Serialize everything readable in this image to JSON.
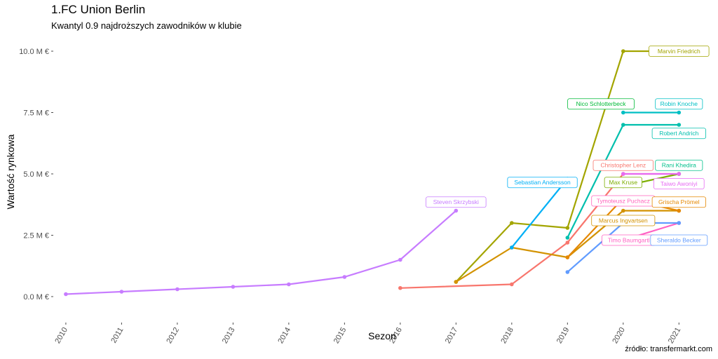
{
  "chart_data": {
    "type": "line",
    "title": "1.FC Union Berlin",
    "subtitle": "Kwantyl 0.9 najdroższych zawodników w klubie",
    "caption": "źródło: transfermarkt.com",
    "xlabel": "Sezon",
    "ylabel": "Wartość rynkowa",
    "x_ticks": [
      "2010",
      "2011",
      "2012",
      "2013",
      "2014",
      "2015",
      "2016",
      "2017",
      "2018",
      "2019",
      "2020",
      "2021"
    ],
    "y_ticks": [
      {
        "value": 0,
        "label": "0.0 M €"
      },
      {
        "value": 2.5,
        "label": "2.5 M €"
      },
      {
        "value": 5,
        "label": "5.0 M €"
      },
      {
        "value": 7.5,
        "label": "7.5 M €"
      },
      {
        "value": 10,
        "label": "10.0 M €"
      }
    ],
    "xlim": [
      2009.8,
      2021.6
    ],
    "ylim": [
      -1,
      10.8
    ],
    "grid": false,
    "series": [
      {
        "name": "Steven Skrzybski",
        "color": "#C77CFF",
        "points": [
          [
            2010,
            0.1
          ],
          [
            2011,
            0.2
          ],
          [
            2012,
            0.3
          ],
          [
            2013,
            0.4
          ],
          [
            2014,
            0.5
          ],
          [
            2015,
            0.8
          ],
          [
            2016,
            1.5
          ],
          [
            2017,
            3.5
          ]
        ]
      },
      {
        "name": "Christopher Lenz",
        "color": "#F8766D",
        "points": [
          [
            2016,
            0.35
          ],
          [
            2018,
            0.5
          ],
          [
            2019,
            2.2
          ],
          [
            2020,
            5.0
          ],
          [
            2021,
            5.0
          ]
        ]
      },
      {
        "name": "Marvin Friedrich",
        "color": "#A3A500",
        "points": [
          [
            2017,
            0.6
          ],
          [
            2018,
            3.0
          ],
          [
            2019,
            2.8
          ],
          [
            2020,
            10.0
          ],
          [
            2021,
            10.0
          ]
        ]
      },
      {
        "name": "Marcus Ingvartsen",
        "color": "#D39200",
        "points": [
          [
            2017,
            0.6
          ],
          [
            2018,
            2.0
          ],
          [
            2019,
            1.6
          ],
          [
            2020,
            3.5
          ],
          [
            2021,
            3.5
          ]
        ]
      },
      {
        "name": "Sebastian Andersson",
        "color": "#00B0F6",
        "points": [
          [
            2018,
            2.0
          ],
          [
            2019,
            4.8
          ]
        ]
      },
      {
        "name": "Robin Knoche",
        "color": "#00BFC4",
        "points": [
          [
            2020,
            7.5
          ],
          [
            2021,
            7.5
          ]
        ]
      },
      {
        "name": "Robert Andrich",
        "color": "#00BFAD",
        "points": [
          [
            2019,
            2.4
          ],
          [
            2020,
            7.0
          ],
          [
            2021,
            7.0
          ]
        ]
      },
      {
        "name": "Nico Schlotterbeck",
        "color": "#00BA38",
        "points": []
      },
      {
        "name": "Rani Khedira",
        "color": "#00C08B",
        "points": [
          [
            2021,
            5.0
          ]
        ]
      },
      {
        "name": "Max Kruse",
        "color": "#7CAE00",
        "points": [
          [
            2020,
            4.5
          ],
          [
            2021,
            5.0
          ]
        ]
      },
      {
        "name": "Taiwo Awoniyi",
        "color": "#E76BF3",
        "points": [
          [
            2020,
            5.0
          ],
          [
            2021,
            5.0
          ]
        ]
      },
      {
        "name": "Tymoteusz Puchacz",
        "color": "#FF62BC",
        "points": []
      },
      {
        "name": "Grischa Prömel",
        "color": "#E58700",
        "points": [
          [
            2019,
            1.6
          ],
          [
            2020,
            4.0
          ],
          [
            2021,
            3.5
          ]
        ]
      },
      {
        "name": "Timo Baumgartl",
        "color": "#FF61C3",
        "points": [
          [
            2020,
            2.3
          ],
          [
            2021,
            3.0
          ]
        ]
      },
      {
        "name": "Sheraldo Becker",
        "color": "#619CFF",
        "points": [
          [
            2019,
            1.0
          ],
          [
            2020,
            3.0
          ],
          [
            2021,
            3.0
          ]
        ]
      }
    ],
    "labels": [
      {
        "text": "Steven Skrzybski",
        "x": 2017,
        "y": 3.85,
        "color": "#C77CFF"
      },
      {
        "text": "Marvin Friedrich",
        "x": 2021,
        "y": 10.0,
        "color": "#A3A500"
      },
      {
        "text": "Nico Schlotterbeck",
        "x": 2019.6,
        "y": 7.85,
        "color": "#00BA38"
      },
      {
        "text": "Robin Knoche",
        "x": 2021,
        "y": 7.85,
        "color": "#00BFC4"
      },
      {
        "text": "Robert Andrich",
        "x": 2021,
        "y": 6.65,
        "color": "#00BFAD"
      },
      {
        "text": "Christopher Lenz",
        "x": 2020,
        "y": 5.35,
        "color": "#F8766D"
      },
      {
        "text": "Rani Khedira",
        "x": 2021,
        "y": 5.35,
        "color": "#00C08B"
      },
      {
        "text": "Sebastian Andersson",
        "x": 2018.55,
        "y": 4.65,
        "color": "#00B0F6"
      },
      {
        "text": "Max Kruse",
        "x": 2020,
        "y": 4.65,
        "color": "#7CAE00"
      },
      {
        "text": "Taiwo Awoniyi",
        "x": 2021,
        "y": 4.6,
        "color": "#E76BF3"
      },
      {
        "text": "Tymoteusz Puchacz",
        "x": 2020,
        "y": 3.9,
        "color": "#FF62BC"
      },
      {
        "text": "Grischa Prömel",
        "x": 2021,
        "y": 3.85,
        "color": "#E58700"
      },
      {
        "text": "Marcus Ingvartsen",
        "x": 2020,
        "y": 3.1,
        "color": "#D39200"
      },
      {
        "text": "Timo Baumgartl",
        "x": 2020.1,
        "y": 2.3,
        "color": "#FF61C3"
      },
      {
        "text": "Sheraldo Becker",
        "x": 2021,
        "y": 2.3,
        "color": "#619CFF"
      }
    ]
  }
}
